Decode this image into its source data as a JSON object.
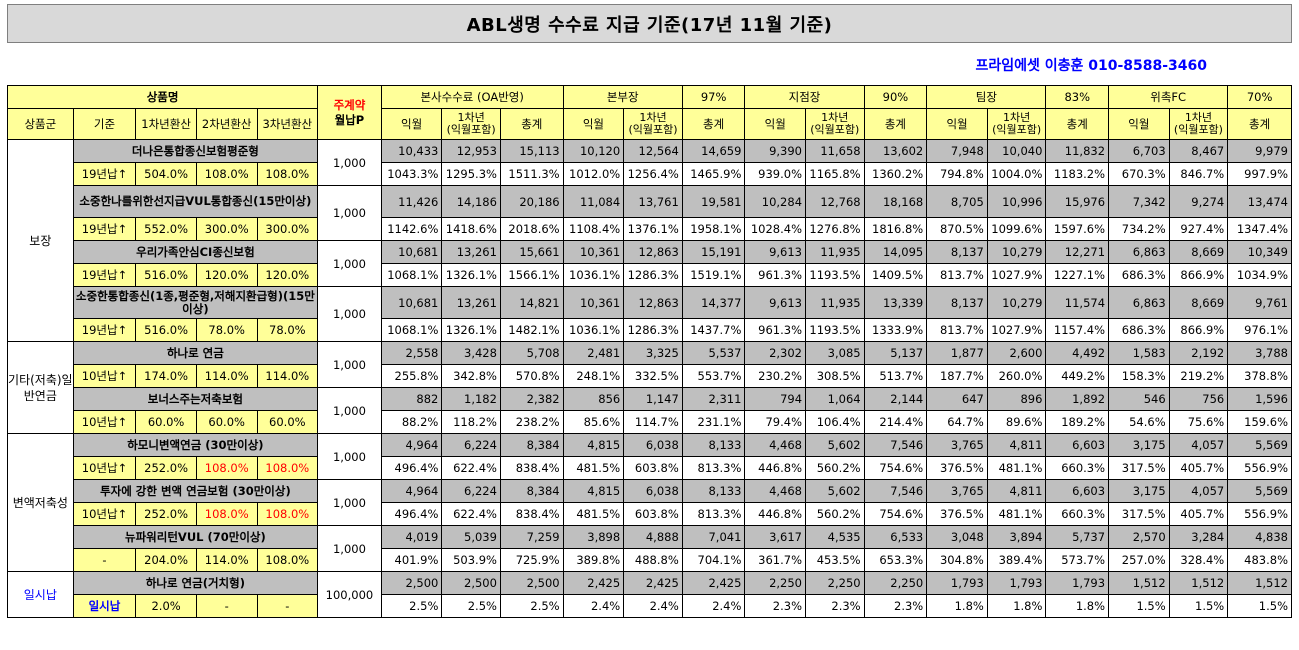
{
  "title": "ABL생명 수수료 지급 기준(17년 11월 기준)",
  "contact": "프라임에셋 이충훈 010-8588-3460",
  "header": {
    "product_name": "상품명",
    "main_contract_line1": "주계약",
    "main_contract_line2": "월납P",
    "groups": [
      {
        "label": "본사수수료 (OA반영)",
        "pct": ""
      },
      {
        "label": "본부장",
        "pct": "97%"
      },
      {
        "label": "지점장",
        "pct": "90%"
      },
      {
        "label": "팀장",
        "pct": "83%"
      },
      {
        "label": "위촉FC",
        "pct": "70%"
      }
    ],
    "sub_left": [
      "상품군",
      "기준",
      "1차년환산",
      "2차년환산",
      "3차년환산"
    ],
    "sub_col1": "익월",
    "sub_col2_line1": "1차년",
    "sub_col2_line2": "(익월포함)",
    "sub_col3": "총계"
  },
  "sections": [
    {
      "group": "보장",
      "products": [
        {
          "name": "더나은통합종신보험평준형",
          "premium": "1,000",
          "basis": "19년납↑",
          "c1": "504.0%",
          "c2": "108.0%",
          "c3": "108.0%",
          "c2_red": false,
          "amounts": [
            "10,433",
            "12,953",
            "15,113",
            "10,120",
            "12,564",
            "14,659",
            "9,390",
            "11,658",
            "13,602",
            "7,948",
            "10,040",
            "11,832",
            "6,703",
            "8,467",
            "9,979"
          ],
          "rates": [
            "1043.3%",
            "1295.3%",
            "1511.3%",
            "1012.0%",
            "1256.4%",
            "1465.9%",
            "939.0%",
            "1165.8%",
            "1360.2%",
            "794.8%",
            "1004.0%",
            "1183.2%",
            "670.3%",
            "846.7%",
            "997.9%"
          ]
        },
        {
          "name": "소중한나를위한선지급VUL통합종신(15만이상)",
          "premium": "1,000",
          "basis": "19년납↑",
          "c1": "552.0%",
          "c2": "300.0%",
          "c3": "300.0%",
          "c2_red": false,
          "amounts": [
            "11,426",
            "14,186",
            "20,186",
            "11,084",
            "13,761",
            "19,581",
            "10,284",
            "12,768",
            "18,168",
            "8,705",
            "10,996",
            "15,976",
            "7,342",
            "9,274",
            "13,474"
          ],
          "rates": [
            "1142.6%",
            "1418.6%",
            "2018.6%",
            "1108.4%",
            "1376.1%",
            "1958.1%",
            "1028.4%",
            "1276.8%",
            "1816.8%",
            "870.5%",
            "1099.6%",
            "1597.6%",
            "734.2%",
            "927.4%",
            "1347.4%"
          ]
        },
        {
          "name": "우리가족안심CI종신보험",
          "premium": "1,000",
          "basis": "19년납↑",
          "c1": "516.0%",
          "c2": "120.0%",
          "c3": "120.0%",
          "c2_red": false,
          "amounts": [
            "10,681",
            "13,261",
            "15,661",
            "10,361",
            "12,863",
            "15,191",
            "9,613",
            "11,935",
            "14,095",
            "8,137",
            "10,279",
            "12,271",
            "6,863",
            "8,669",
            "10,349"
          ],
          "rates": [
            "1068.1%",
            "1326.1%",
            "1566.1%",
            "1036.1%",
            "1286.3%",
            "1519.1%",
            "961.3%",
            "1193.5%",
            "1409.5%",
            "813.7%",
            "1027.9%",
            "1227.1%",
            "686.3%",
            "866.9%",
            "1034.9%"
          ]
        },
        {
          "name": "소중한통합종신(1종,평준형,저해지환급형)(15만 이상)",
          "premium": "1,000",
          "basis": "19년납↑",
          "c1": "516.0%",
          "c2": "78.0%",
          "c3": "78.0%",
          "c2_red": false,
          "amounts": [
            "10,681",
            "13,261",
            "14,821",
            "10,361",
            "12,863",
            "14,377",
            "9,613",
            "11,935",
            "13,339",
            "8,137",
            "10,279",
            "11,574",
            "6,863",
            "8,669",
            "9,761"
          ],
          "rates": [
            "1068.1%",
            "1326.1%",
            "1482.1%",
            "1036.1%",
            "1286.3%",
            "1437.7%",
            "961.3%",
            "1193.5%",
            "1333.9%",
            "813.7%",
            "1027.9%",
            "1157.4%",
            "686.3%",
            "866.9%",
            "976.1%"
          ]
        }
      ]
    },
    {
      "group": "기타(저축)일반연금",
      "products": [
        {
          "name": "하나로 연금",
          "premium": "1,000",
          "basis": "10년납↑",
          "c1": "174.0%",
          "c2": "114.0%",
          "c3": "114.0%",
          "c2_red": false,
          "amounts": [
            "2,558",
            "3,428",
            "5,708",
            "2,481",
            "3,325",
            "5,537",
            "2,302",
            "3,085",
            "5,137",
            "1,877",
            "2,600",
            "4,492",
            "1,583",
            "2,192",
            "3,788"
          ],
          "rates": [
            "255.8%",
            "342.8%",
            "570.8%",
            "248.1%",
            "332.5%",
            "553.7%",
            "230.2%",
            "308.5%",
            "513.7%",
            "187.7%",
            "260.0%",
            "449.2%",
            "158.3%",
            "219.2%",
            "378.8%"
          ]
        },
        {
          "name": "보너스주는저축보험",
          "premium": "1,000",
          "basis": "10년납↑",
          "c1": "60.0%",
          "c2": "60.0%",
          "c3": "60.0%",
          "c2_red": false,
          "amounts": [
            "882",
            "1,182",
            "2,382",
            "856",
            "1,147",
            "2,311",
            "794",
            "1,064",
            "2,144",
            "647",
            "896",
            "1,892",
            "546",
            "756",
            "1,596"
          ],
          "rates": [
            "88.2%",
            "118.2%",
            "238.2%",
            "85.6%",
            "114.7%",
            "231.1%",
            "79.4%",
            "106.4%",
            "214.4%",
            "64.7%",
            "89.6%",
            "189.2%",
            "54.6%",
            "75.6%",
            "159.6%"
          ]
        }
      ]
    },
    {
      "group": "변액저축성",
      "products": [
        {
          "name": "하모니변액연금 (30만이상)",
          "premium": "1,000",
          "basis": "10년납↑",
          "c1": "252.0%",
          "c2": "108.0%",
          "c3": "108.0%",
          "c2_red": true,
          "amounts": [
            "4,964",
            "6,224",
            "8,384",
            "4,815",
            "6,038",
            "8,133",
            "4,468",
            "5,602",
            "7,546",
            "3,765",
            "4,811",
            "6,603",
            "3,175",
            "4,057",
            "5,569"
          ],
          "rates": [
            "496.4%",
            "622.4%",
            "838.4%",
            "481.5%",
            "603.8%",
            "813.3%",
            "446.8%",
            "560.2%",
            "754.6%",
            "376.5%",
            "481.1%",
            "660.3%",
            "317.5%",
            "405.7%",
            "556.9%"
          ]
        },
        {
          "name": "투자에 강한 변액 연금보험 (30만이상)",
          "premium": "1,000",
          "basis": "10년납↑",
          "c1": "252.0%",
          "c2": "108.0%",
          "c3": "108.0%",
          "c2_red": true,
          "amounts": [
            "4,964",
            "6,224",
            "8,384",
            "4,815",
            "6,038",
            "8,133",
            "4,468",
            "5,602",
            "7,546",
            "3,765",
            "4,811",
            "6,603",
            "3,175",
            "4,057",
            "5,569"
          ],
          "rates": [
            "496.4%",
            "622.4%",
            "838.4%",
            "481.5%",
            "603.8%",
            "813.3%",
            "446.8%",
            "560.2%",
            "754.6%",
            "376.5%",
            "481.1%",
            "660.3%",
            "317.5%",
            "405.7%",
            "556.9%"
          ]
        },
        {
          "name": "뉴파워리턴VUL (70만이상)",
          "premium": "1,000",
          "basis": "-",
          "c1": "204.0%",
          "c2": "114.0%",
          "c3": "108.0%",
          "c2_red": false,
          "amounts": [
            "4,019",
            "5,039",
            "7,259",
            "3,898",
            "4,888",
            "7,041",
            "3,617",
            "4,535",
            "6,533",
            "3,048",
            "3,894",
            "5,737",
            "2,570",
            "3,284",
            "4,838"
          ],
          "rates": [
            "401.9%",
            "503.9%",
            "725.9%",
            "389.8%",
            "488.8%",
            "704.1%",
            "361.7%",
            "453.5%",
            "653.3%",
            "304.8%",
            "389.4%",
            "573.7%",
            "257.0%",
            "328.4%",
            "483.8%"
          ]
        }
      ]
    },
    {
      "group": "일시납",
      "products": [
        {
          "name": "하나로 연금(거치형)",
          "premium": "100,000",
          "basis": "일시납",
          "c1": "2.0%",
          "c2": "-",
          "c3": "-",
          "c2_red": false,
          "amounts": [
            "2,500",
            "2,500",
            "2,500",
            "2,425",
            "2,425",
            "2,425",
            "2,250",
            "2,250",
            "2,250",
            "1,793",
            "1,793",
            "1,793",
            "1,512",
            "1,512",
            "1,512"
          ],
          "rates": [
            "2.5%",
            "2.5%",
            "2.5%",
            "2.4%",
            "2.4%",
            "2.4%",
            "2.3%",
            "2.3%",
            "2.3%",
            "1.8%",
            "1.8%",
            "1.8%",
            "1.5%",
            "1.5%",
            "1.5%"
          ]
        }
      ]
    }
  ]
}
